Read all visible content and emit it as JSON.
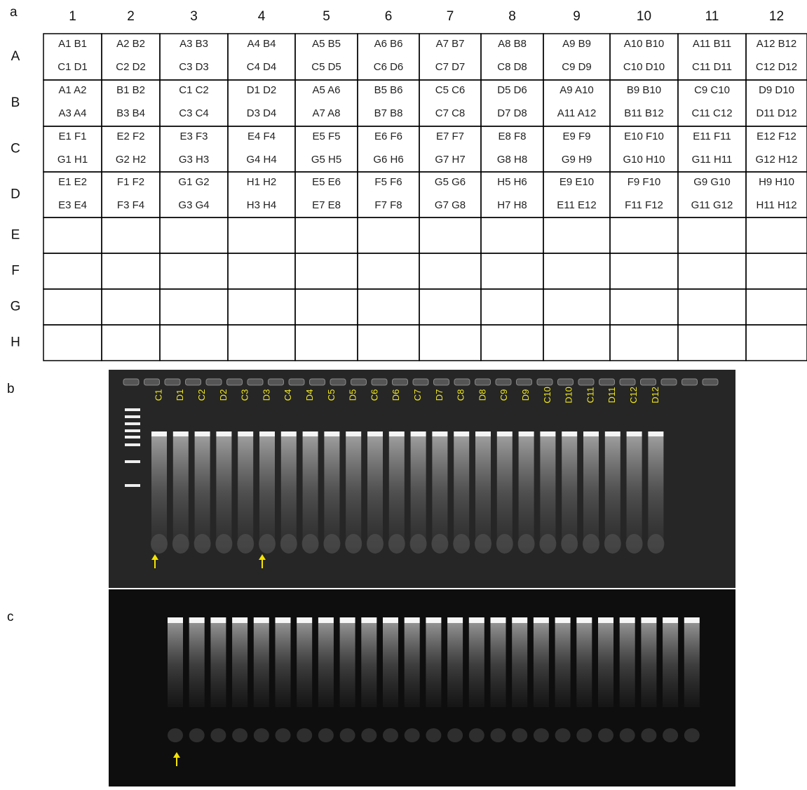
{
  "panels": {
    "a": "a",
    "b": "b",
    "c": "c"
  },
  "table": {
    "columns": [
      "1",
      "2",
      "3",
      "4",
      "5",
      "6",
      "7",
      "8",
      "9",
      "10",
      "11",
      "12"
    ],
    "rows": [
      {
        "label": "A",
        "cells": [
          [
            "A1 B1",
            "C1 D1"
          ],
          [
            "A2 B2",
            "C2 D2"
          ],
          [
            "A3 B3",
            "C3 D3"
          ],
          [
            "A4 B4",
            "C4 D4"
          ],
          [
            "A5 B5",
            "C5 D5"
          ],
          [
            "A6 B6",
            "C6 D6"
          ],
          [
            "A7 B7",
            "C7 D7"
          ],
          [
            "A8 B8",
            "C8 D8"
          ],
          [
            "A9 B9",
            "C9 D9"
          ],
          [
            "A10 B10",
            "C10 D10"
          ],
          [
            "A11 B11",
            "C11 D11"
          ],
          [
            "A12 B12",
            "C12 D12"
          ]
        ]
      },
      {
        "label": "B",
        "cells": [
          [
            "A1 A2",
            "A3 A4"
          ],
          [
            "B1 B2",
            "B3 B4"
          ],
          [
            "C1 C2",
            "C3 C4"
          ],
          [
            "D1 D2",
            "D3 D4"
          ],
          [
            "A5 A6",
            "A7 A8"
          ],
          [
            "B5 B6",
            "B7 B8"
          ],
          [
            "C5 C6",
            "C7 C8"
          ],
          [
            "D5 D6",
            "D7 D8"
          ],
          [
            "A9 A10",
            "A11 A12"
          ],
          [
            "B9 B10",
            "B11 B12"
          ],
          [
            "C9 C10",
            "C11 C12"
          ],
          [
            "D9 D10",
            "D11 D12"
          ]
        ]
      },
      {
        "label": "C",
        "cells": [
          [
            "E1 F1",
            "G1 H1"
          ],
          [
            "E2 F2",
            "G2 H2"
          ],
          [
            "E3 F3",
            "G3 H3"
          ],
          [
            "E4 F4",
            "G4 H4"
          ],
          [
            "E5 F5",
            "G5 H5"
          ],
          [
            "E6 F6",
            "G6 H6"
          ],
          [
            "E7 F7",
            "G7 H7"
          ],
          [
            "E8 F8",
            "G8 H8"
          ],
          [
            "E9 F9",
            "G9 H9"
          ],
          [
            "E10 F10",
            "G10 H10"
          ],
          [
            "E11 F11",
            "G11 H11"
          ],
          [
            "E12 F12",
            "G12 H12"
          ]
        ]
      },
      {
        "label": "D",
        "cells": [
          [
            "E1 E2",
            "E3 E4"
          ],
          [
            "F1 F2",
            "F3 F4"
          ],
          [
            "G1 G2",
            "G3 G4"
          ],
          [
            "H1 H2",
            "H3 H4"
          ],
          [
            "E5 E6",
            "E7 E8"
          ],
          [
            "F5 F6",
            "F7 F8"
          ],
          [
            "G5 G6",
            "G7 G8"
          ],
          [
            "H5 H6",
            "H7 H8"
          ],
          [
            "E9 E10",
            "E11 E12"
          ],
          [
            "F9 F10",
            "F11 F12"
          ],
          [
            "G9 G10",
            "G11 G12"
          ],
          [
            "H9 H10",
            "H11 H12"
          ]
        ]
      },
      {
        "label": "E"
      },
      {
        "label": "F"
      },
      {
        "label": "G"
      },
      {
        "label": "H"
      }
    ]
  },
  "gel_b": {
    "lanes": [
      "C1",
      "D1",
      "C2",
      "D2",
      "C3",
      "D3",
      "C4",
      "D4",
      "C5",
      "D5",
      "C6",
      "D6",
      "C7",
      "D7",
      "C8",
      "D8",
      "C9",
      "D9",
      "C10",
      "D10",
      "C11",
      "D11",
      "C12",
      "D12"
    ]
  }
}
